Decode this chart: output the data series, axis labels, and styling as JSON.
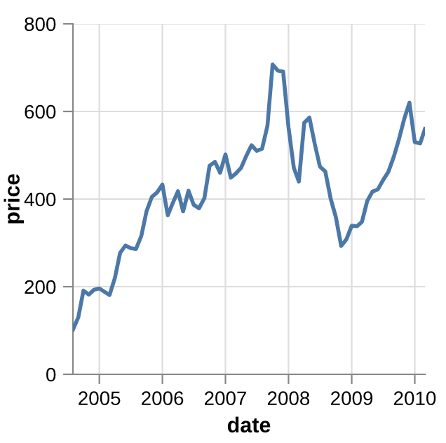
{
  "chart_data": {
    "type": "line",
    "xlabel": "date",
    "ylabel": "price",
    "color": "#4c78a8",
    "grid": true,
    "x": [
      "2004-08-01",
      "2004-09-01",
      "2004-10-01",
      "2004-11-01",
      "2004-12-01",
      "2005-01-01",
      "2005-02-01",
      "2005-03-01",
      "2005-04-01",
      "2005-05-01",
      "2005-06-01",
      "2005-07-01",
      "2005-08-01",
      "2005-09-01",
      "2005-10-01",
      "2005-11-01",
      "2005-12-01",
      "2006-01-01",
      "2006-02-01",
      "2006-03-01",
      "2006-04-01",
      "2006-05-01",
      "2006-06-01",
      "2006-07-01",
      "2006-08-01",
      "2006-09-01",
      "2006-10-01",
      "2006-11-01",
      "2006-12-01",
      "2007-01-01",
      "2007-02-01",
      "2007-03-01",
      "2007-04-01",
      "2007-05-01",
      "2007-06-01",
      "2007-07-01",
      "2007-08-01",
      "2007-09-01",
      "2007-10-01",
      "2007-11-01",
      "2007-12-01",
      "2008-01-01",
      "2008-02-01",
      "2008-03-01",
      "2008-04-01",
      "2008-05-01",
      "2008-06-01",
      "2008-07-01",
      "2008-08-01",
      "2008-09-01",
      "2008-10-01",
      "2008-11-01",
      "2008-12-01",
      "2009-01-01",
      "2009-02-01",
      "2009-03-01",
      "2009-04-01",
      "2009-05-01",
      "2009-06-01",
      "2009-07-01",
      "2009-08-01",
      "2009-09-01",
      "2009-10-01",
      "2009-11-01",
      "2009-12-01",
      "2010-01-01",
      "2010-02-01",
      "2010-03-01"
    ],
    "values": [
      102,
      130,
      191,
      182,
      193,
      196,
      188,
      181,
      220,
      277,
      294,
      288,
      286,
      316,
      372,
      405,
      415,
      433,
      363,
      390,
      418,
      372,
      419,
      387,
      379,
      402,
      476,
      485,
      460,
      502,
      449,
      458,
      471,
      498,
      523,
      510,
      515,
      567,
      707,
      693,
      691,
      564,
      471,
      440,
      574,
      586,
      526,
      474,
      463,
      401,
      359,
      293,
      308,
      339,
      338,
      348,
      396,
      417,
      422,
      443,
      462,
      496,
      536,
      583,
      620,
      530,
      527,
      560
    ],
    "xlim": [
      "2004-08-01",
      "2010-03-01"
    ],
    "xticks": [
      {
        "value": "2005-01-01",
        "label": "2005"
      },
      {
        "value": "2006-01-01",
        "label": "2006"
      },
      {
        "value": "2007-01-01",
        "label": "2007"
      },
      {
        "value": "2008-01-01",
        "label": "2008"
      },
      {
        "value": "2009-01-01",
        "label": "2009"
      },
      {
        "value": "2010-01-01",
        "label": "2010"
      }
    ],
    "ylim": [
      0,
      800
    ],
    "yticks": [
      0,
      200,
      400,
      600,
      800
    ]
  }
}
